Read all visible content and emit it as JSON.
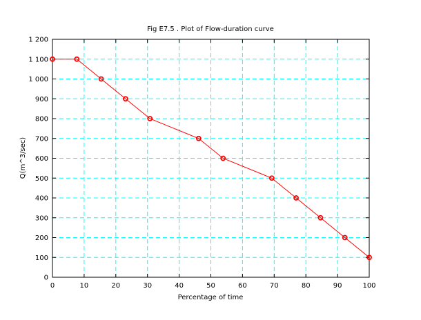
{
  "chart_data": {
    "type": "line",
    "title": "Fig E7.5 . Plot of Flow-duration curve",
    "xlabel": "Percentage of time",
    "ylabel": "Q(m^3/sec)",
    "xlim": [
      0,
      100
    ],
    "ylim": [
      0,
      1200
    ],
    "x_ticks": [
      0,
      10,
      20,
      30,
      40,
      50,
      60,
      70,
      80,
      90,
      100
    ],
    "y_ticks": [
      0,
      100,
      200,
      300,
      400,
      500,
      600,
      700,
      800,
      900,
      1000,
      1100,
      1200
    ],
    "x_tick_labels": [
      "0",
      "10",
      "20",
      "30",
      "40",
      "50",
      "60",
      "70",
      "80",
      "90",
      "100"
    ],
    "y_tick_labels": [
      "0",
      "100",
      "200",
      "300",
      "400",
      "500",
      "600",
      "700",
      "800",
      "900",
      "1 000",
      "1 100",
      "1 200"
    ],
    "grid": true,
    "grid_color": "#00ffff",
    "line_color": "#ff0000",
    "marker_color": "#ff0000",
    "series": [
      {
        "x": [
          0,
          7.69,
          15.38,
          23.08,
          30.77,
          46.15,
          53.85,
          69.23,
          76.92,
          84.62,
          92.31,
          100
        ],
        "y": [
          1100,
          1100,
          1000,
          900,
          800,
          700,
          600,
          500,
          400,
          300,
          200,
          100
        ]
      }
    ]
  }
}
